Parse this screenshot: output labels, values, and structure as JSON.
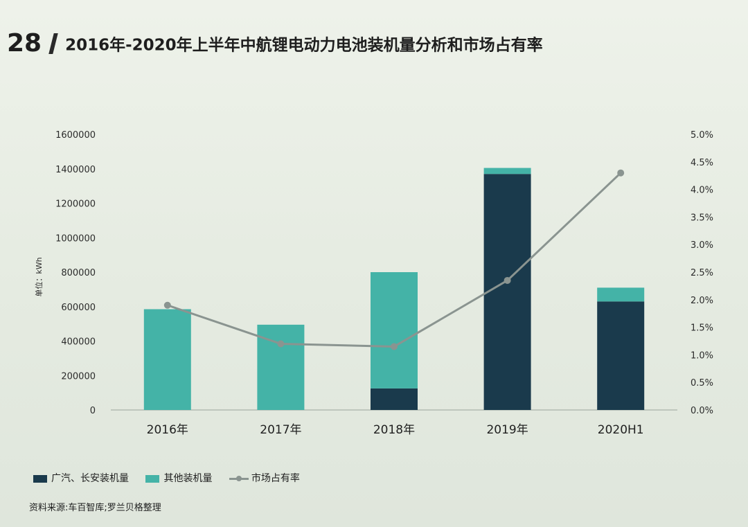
{
  "header": {
    "number": "28",
    "title": "2016年-2020年上半年中航锂电动力电池装机量分析和市场占有率"
  },
  "chart_data": {
    "type": "bar",
    "stacked": true,
    "categories": [
      "2016年",
      "2017年",
      "2018年",
      "2019年",
      "2020H1"
    ],
    "series": [
      {
        "name": "广汽、长安装机量",
        "type": "bar",
        "axis": "left",
        "color": "#1a3a4c",
        "values": [
          0,
          0,
          125000,
          1370000,
          630000
        ]
      },
      {
        "name": "其他装机量",
        "type": "bar",
        "axis": "left",
        "color": "#44b3a7",
        "values": [
          585000,
          495000,
          675000,
          35000,
          80000
        ]
      },
      {
        "name": "市场占有率",
        "type": "line",
        "axis": "right",
        "color": "#8a9490",
        "values": [
          1.9,
          1.2,
          1.15,
          2.35,
          4.3
        ]
      }
    ],
    "ylabel": "单位：kWh",
    "ylim": [
      0,
      1600000
    ],
    "yticks": [
      "0",
      "200000",
      "400000",
      "600000",
      "800000",
      "1000000",
      "1200000",
      "1400000",
      "1600000"
    ],
    "y2lim": [
      0,
      5
    ],
    "y2ticks": [
      "0.0%",
      "0.5%",
      "1.0%",
      "1.5%",
      "2.0%",
      "2.5%",
      "3.0%",
      "3.5%",
      "4.0%",
      "4.5%",
      "5.0%"
    ],
    "legend_position": "bottom-left"
  },
  "source": "资料来源:车百智库;罗兰贝格整理"
}
